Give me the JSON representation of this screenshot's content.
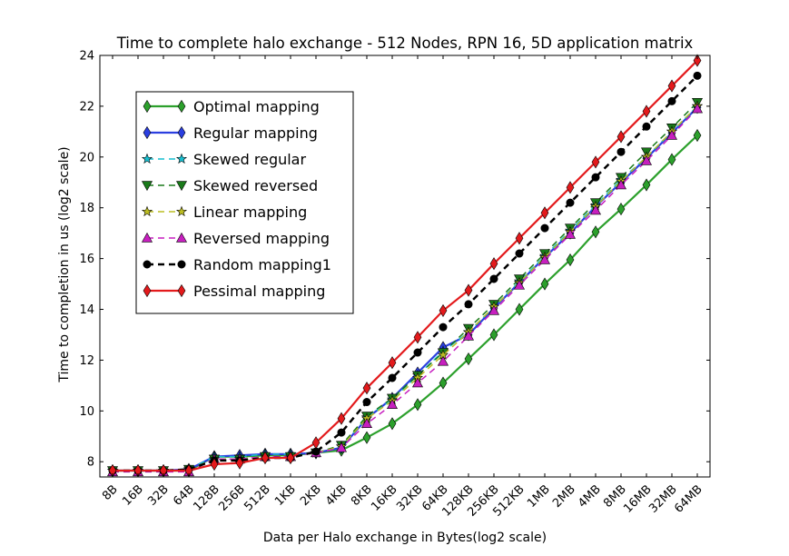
{
  "chart_data": {
    "type": "line",
    "title": "Time to complete halo exchange - 512 Nodes, RPN 16, 5D application matrix",
    "xlabel": "Data per Halo exchange in Bytes(log2 scale)",
    "ylabel": "Time to completion in us (log2 scale)",
    "x_scale": "log2",
    "y_scale": "log2",
    "ylim": [
      7.4,
      24
    ],
    "yticks": [
      8,
      10,
      12,
      14,
      16,
      18,
      20,
      22,
      24
    ],
    "grid": false,
    "legend_position": "upper-left",
    "categories": [
      "8B",
      "16B",
      "32B",
      "64B",
      "128B",
      "256B",
      "512B",
      "1KB",
      "2KB",
      "4KB",
      "8KB",
      "16KB",
      "32KB",
      "64KB",
      "128KB",
      "256KB",
      "512KB",
      "1MB",
      "2MB",
      "4MB",
      "8MB",
      "16MB",
      "32MB",
      "64MB"
    ],
    "series": [
      {
        "name": "Optimal mapping",
        "color": "#2ca02c",
        "linestyle": "solid",
        "marker": "diamond",
        "values": [
          7.65,
          7.65,
          7.65,
          7.65,
          8.2,
          8.2,
          8.25,
          8.25,
          8.35,
          8.45,
          8.95,
          9.5,
          10.25,
          11.1,
          12.05,
          13.0,
          14.0,
          15.0,
          15.95,
          17.05,
          17.95,
          18.9,
          19.9,
          20.85
        ]
      },
      {
        "name": "Regular mapping",
        "color": "#2b3fe0",
        "linestyle": "solid",
        "marker": "diamond",
        "values": [
          7.65,
          7.65,
          7.65,
          7.7,
          8.2,
          8.25,
          8.3,
          8.3,
          8.35,
          8.55,
          9.7,
          10.5,
          11.5,
          12.5,
          13.0,
          14.05,
          15.05,
          16.05,
          17.0,
          18.05,
          19.0,
          19.95,
          20.95,
          21.95
        ]
      },
      {
        "name": "Skewed regular",
        "color": "#17becf",
        "linestyle": "dashed",
        "marker": "star",
        "values": [
          7.65,
          7.65,
          7.65,
          7.7,
          8.2,
          8.2,
          8.3,
          8.3,
          8.35,
          8.6,
          9.75,
          10.45,
          11.4,
          12.35,
          13.1,
          14.1,
          15.1,
          16.1,
          17.1,
          18.1,
          19.1,
          20.0,
          21.0,
          22.0
        ]
      },
      {
        "name": "Skewed reversed",
        "color": "#1a7a1a",
        "linestyle": "dashed",
        "marker": "triangle-down",
        "values": [
          7.65,
          7.65,
          7.65,
          7.7,
          8.1,
          8.1,
          8.2,
          8.2,
          8.35,
          8.65,
          9.8,
          10.5,
          11.4,
          12.3,
          13.25,
          14.2,
          15.2,
          16.2,
          17.2,
          18.2,
          19.2,
          20.2,
          21.15,
          22.15
        ]
      },
      {
        "name": "Linear mapping",
        "color": "#bcbd22",
        "linestyle": "dashed",
        "marker": "star",
        "values": [
          7.65,
          7.65,
          7.65,
          7.7,
          8.1,
          8.1,
          8.2,
          8.2,
          8.35,
          8.6,
          9.7,
          10.4,
          11.3,
          12.2,
          13.1,
          14.1,
          15.05,
          16.05,
          17.05,
          18.05,
          19.05,
          20.0,
          21.0,
          22.0
        ]
      },
      {
        "name": "Reversed mapping",
        "color": "#c71fbf",
        "linestyle": "dashed",
        "marker": "triangle-up",
        "values": [
          7.6,
          7.6,
          7.6,
          7.6,
          8.1,
          8.1,
          8.2,
          8.2,
          8.35,
          8.55,
          9.5,
          10.25,
          11.1,
          11.95,
          12.95,
          13.95,
          14.95,
          15.95,
          16.95,
          17.9,
          18.9,
          19.85,
          20.85,
          21.9
        ]
      },
      {
        "name": "Random mapping1",
        "color": "#000000",
        "linestyle": "dashed",
        "marker": "circle",
        "values": [
          7.65,
          7.65,
          7.65,
          7.7,
          8.05,
          8.05,
          8.15,
          8.15,
          8.4,
          9.15,
          10.35,
          11.3,
          12.3,
          13.3,
          14.2,
          15.2,
          16.2,
          17.2,
          18.2,
          19.2,
          20.2,
          21.2,
          22.2,
          23.2
        ]
      },
      {
        "name": "Pessimal mapping",
        "color": "#e31a1c",
        "linestyle": "solid",
        "marker": "diamond",
        "values": [
          7.65,
          7.65,
          7.65,
          7.65,
          7.9,
          7.95,
          8.15,
          8.15,
          8.75,
          9.7,
          10.9,
          11.9,
          12.9,
          13.95,
          14.75,
          15.8,
          16.8,
          17.8,
          18.8,
          19.8,
          20.8,
          21.8,
          22.8,
          23.8
        ]
      }
    ]
  }
}
